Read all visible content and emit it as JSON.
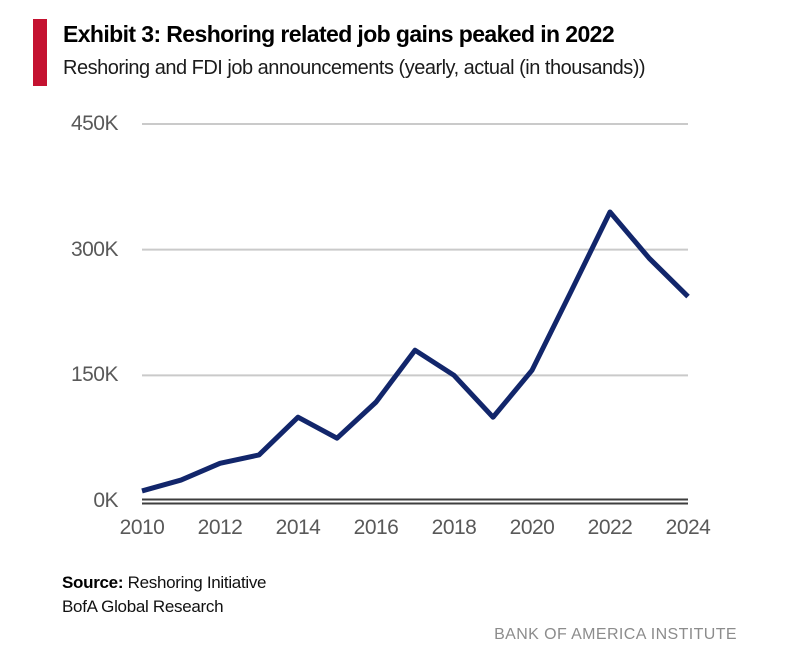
{
  "header": {
    "exhibit_title": "Exhibit 3: Reshoring related job gains peaked in 2022",
    "subtitle": "Reshoring and FDI job announcements (yearly, actual (in thousands))",
    "accent_color": "#C41230"
  },
  "chart_data": {
    "type": "line",
    "title": "Reshoring and FDI job announcements (yearly, actual (in thousands))",
    "x": [
      2010,
      2011,
      2012,
      2013,
      2014,
      2015,
      2016,
      2017,
      2018,
      2019,
      2020,
      2021,
      2022,
      2023,
      2024
    ],
    "series": [
      {
        "name": "Reshoring and FDI job announcements (thousands)",
        "values": [
          12,
          25,
          45,
          55,
          100,
          75,
          118,
          180,
          150,
          100,
          156,
          250,
          345,
          290,
          244
        ]
      }
    ],
    "xlabel": "",
    "ylabel": "",
    "ylim": [
      0,
      450
    ],
    "yticks": [
      0,
      150,
      300,
      450
    ],
    "ytick_labels": [
      "0K",
      "150K",
      "300K",
      "450K"
    ],
    "xticks": [
      2010,
      2012,
      2014,
      2016,
      2018,
      2020,
      2022,
      2024
    ],
    "grid": true,
    "legend": "none",
    "line_color": "#12266B",
    "gridline_color": "#cacaca",
    "axis_line_color": "#3e3e3e",
    "tick_label_color": "#595959"
  },
  "footer": {
    "source_label": "Source:",
    "source_value": "Reshoring Initiative",
    "source_line2": "BofA Global Research",
    "institute": "BANK OF AMERICA INSTITUTE"
  }
}
